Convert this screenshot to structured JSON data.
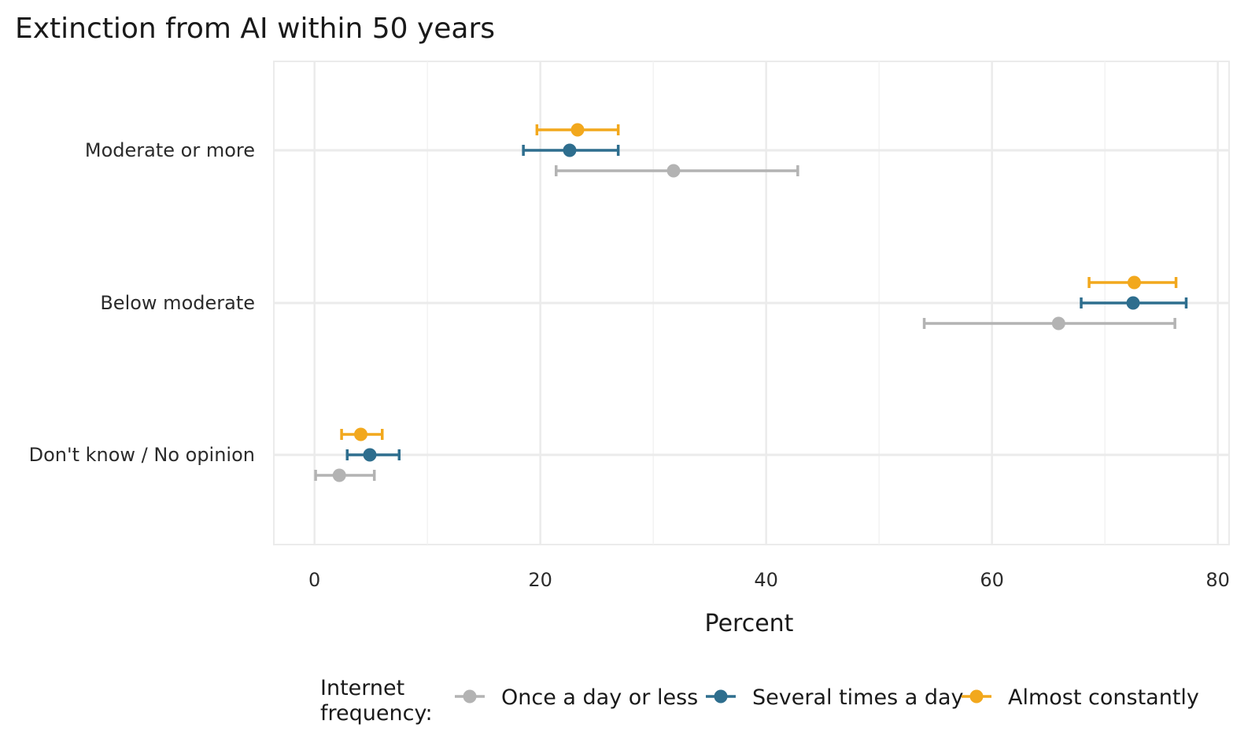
{
  "chart_data": {
    "type": "scatter",
    "title": "Extinction from AI within 50 years",
    "xlabel": "Percent",
    "ylabel": "",
    "xlim": [
      -3.6,
      81
    ],
    "xticks": [
      0,
      20,
      40,
      60,
      80
    ],
    "categories": [
      "Moderate or more",
      "Below moderate",
      "Don't know / No opinion"
    ],
    "grid": true,
    "legend": {
      "title_lines": [
        "Internet",
        "frequency:"
      ],
      "position": "bottom"
    },
    "series": [
      {
        "name": "Once a day or less",
        "color": "#b3b3b3",
        "offset": -1,
        "values": [
          31.8,
          65.9,
          2.2
        ],
        "lower": [
          21.4,
          54.0,
          0.1
        ],
        "upper": [
          42.8,
          76.2,
          5.3
        ]
      },
      {
        "name": "Several times a day",
        "color": "#2e6e8e",
        "offset": 0,
        "values": [
          22.6,
          72.5,
          4.9
        ],
        "lower": [
          18.5,
          67.9,
          2.9
        ],
        "upper": [
          26.9,
          77.2,
          7.5
        ]
      },
      {
        "name": "Almost constantly",
        "color": "#f2a81d",
        "offset": 1,
        "values": [
          23.3,
          72.6,
          4.1
        ],
        "lower": [
          19.7,
          68.6,
          2.4
        ],
        "upper": [
          26.9,
          76.3,
          6.0
        ]
      }
    ]
  }
}
